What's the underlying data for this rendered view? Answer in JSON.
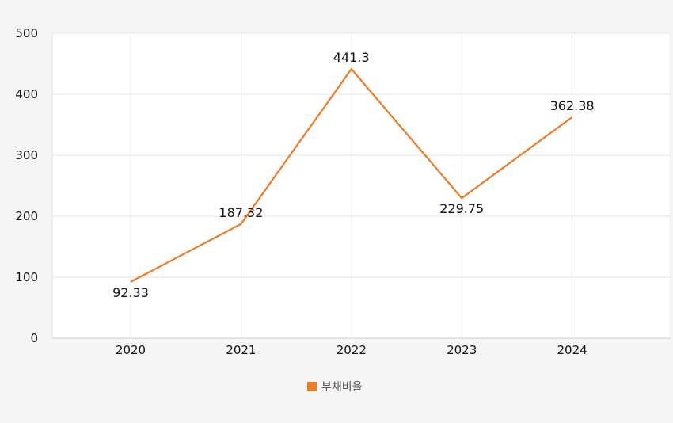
{
  "chart_data": {
    "type": "line",
    "title": "",
    "xlabel": "",
    "ylabel": "",
    "categories": [
      "2020",
      "2021",
      "2022",
      "2023",
      "2024"
    ],
    "series": [
      {
        "name": "부채비율",
        "values": [
          92.33,
          187.32,
          441.3,
          229.75,
          362.38
        ],
        "labels": [
          "92.33",
          "187.32",
          "441.3",
          "229.75",
          "362.38"
        ],
        "color": "#f07a1f"
      }
    ],
    "ylim": [
      0,
      500
    ],
    "yticks": [
      "0",
      "100",
      "200",
      "300",
      "400",
      "500"
    ],
    "grid": true,
    "legend": "bottom-center"
  }
}
